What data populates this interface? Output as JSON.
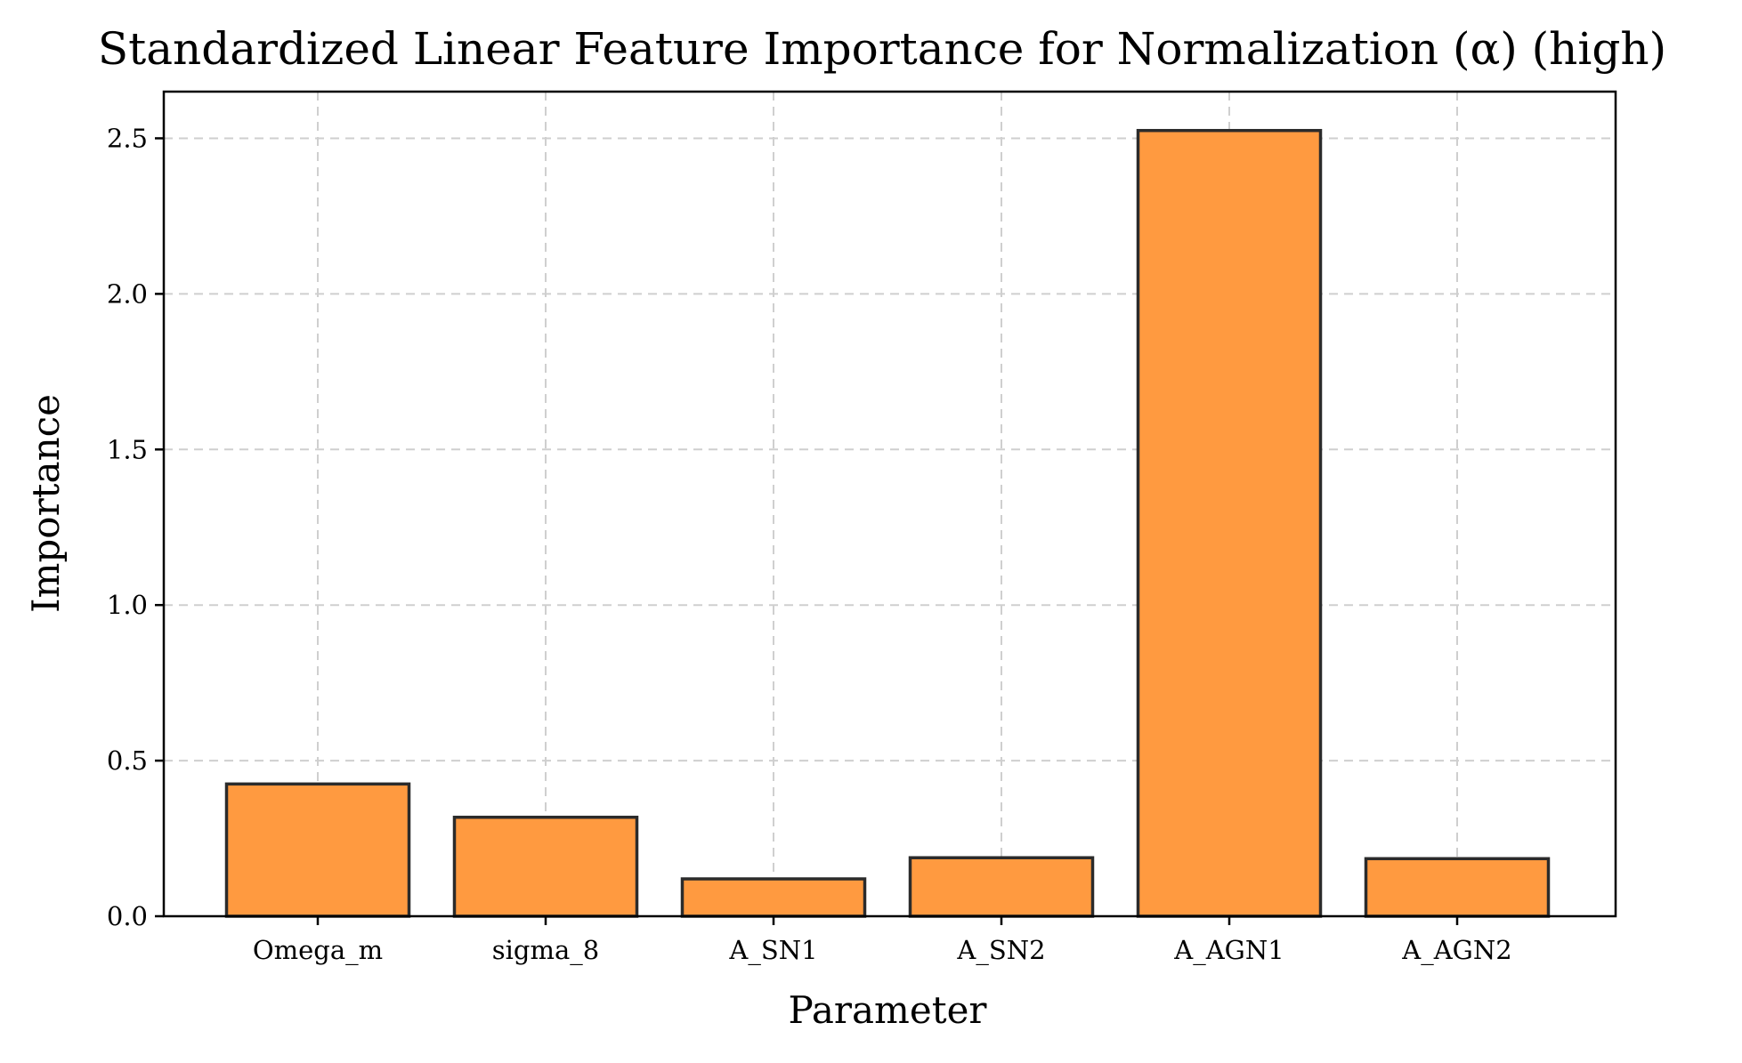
{
  "chart_data": {
    "type": "bar",
    "title": "Standardized Linear Feature Importance for Normalization (α) (high)",
    "xlabel": "Parameter",
    "ylabel": "Importance",
    "categories": [
      "Omega_m",
      "sigma_8",
      "A_SN1",
      "A_SN2",
      "A_AGN1",
      "A_AGN2"
    ],
    "values": [
      0.425,
      0.318,
      0.12,
      0.188,
      2.525,
      0.185
    ],
    "ylim": [
      0,
      2.65
    ],
    "yticks": [
      0.0,
      0.5,
      1.0,
      1.5,
      2.0,
      2.5
    ],
    "ytick_labels": [
      "0.0",
      "0.5",
      "1.0",
      "1.5",
      "2.0",
      "2.5"
    ],
    "grid": true,
    "bar_color": "#ff9a40",
    "edge_color": "#2b2b2b"
  }
}
